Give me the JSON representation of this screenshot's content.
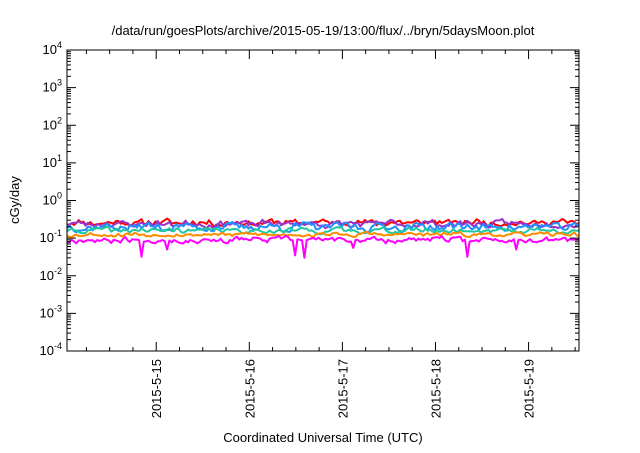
{
  "chart_data": {
    "type": "line",
    "title": "/data/run/goesPlots/archive/2015-05-19/13:00/flux/../bryn/5daysMoon.plot",
    "xlabel": "Coordinated Universal Time (UTC)",
    "ylabel": "cGy/day",
    "yscale": "log",
    "ylim": [
      0.0001,
      10000
    ],
    "xlim": [
      "2015-05-14T01:00",
      "2015-05-19T13:00"
    ],
    "grid": false,
    "legend": "none",
    "x_ticks": [
      {
        "x": "2015-05-15T00:00",
        "label": "2015-5-15"
      },
      {
        "x": "2015-05-16T00:00",
        "label": "2015-5-16"
      },
      {
        "x": "2015-05-17T00:00",
        "label": "2015-5-17"
      },
      {
        "x": "2015-05-18T00:00",
        "label": "2015-5-18"
      },
      {
        "x": "2015-05-19T00:00",
        "label": "2015-5-19"
      }
    ],
    "y_ticks": [
      {
        "value": 0.0001,
        "base": "10",
        "exp": "-4"
      },
      {
        "value": 0.001,
        "base": "10",
        "exp": "-3"
      },
      {
        "value": 0.01,
        "base": "10",
        "exp": "-2"
      },
      {
        "value": 0.1,
        "base": "10",
        "exp": "-1"
      },
      {
        "value": 1,
        "base": "10",
        "exp": "0"
      },
      {
        "value": 10,
        "base": "10",
        "exp": "1"
      },
      {
        "value": 100,
        "base": "10",
        "exp": "2"
      },
      {
        "value": 1000,
        "base": "10",
        "exp": "3"
      },
      {
        "value": 10000,
        "base": "10",
        "exp": "4"
      }
    ],
    "series": [
      {
        "color": "#ff0000",
        "level": 0.26,
        "amp": 0.15,
        "seed": 11,
        "dips": []
      },
      {
        "color": "#9932cc",
        "level": 0.24,
        "amp": 0.15,
        "seed": 23,
        "dips": []
      },
      {
        "color": "#1e90ff",
        "level": 0.2,
        "amp": 0.18,
        "seed": 37,
        "dips": []
      },
      {
        "color": "#20c8a0",
        "level": 0.16,
        "amp": 0.12,
        "seed": 41,
        "dips": []
      },
      {
        "color": "#ff8c00",
        "level": 0.125,
        "amp": 0.09,
        "seed": 53,
        "dips": []
      },
      {
        "color": "#ff00ff",
        "level": 0.09,
        "amp": 0.13,
        "seed": 67,
        "dips": [
          [
            "2015-05-14T20:00",
            0.032
          ],
          [
            "2015-05-15T03:00",
            0.05
          ],
          [
            "2015-05-16T12:00",
            0.035
          ],
          [
            "2015-05-16T14:00",
            0.03
          ],
          [
            "2015-05-17T03:00",
            0.055
          ],
          [
            "2015-05-18T08:00",
            0.032
          ],
          [
            "2015-05-18T21:00",
            0.05
          ]
        ]
      }
    ]
  }
}
